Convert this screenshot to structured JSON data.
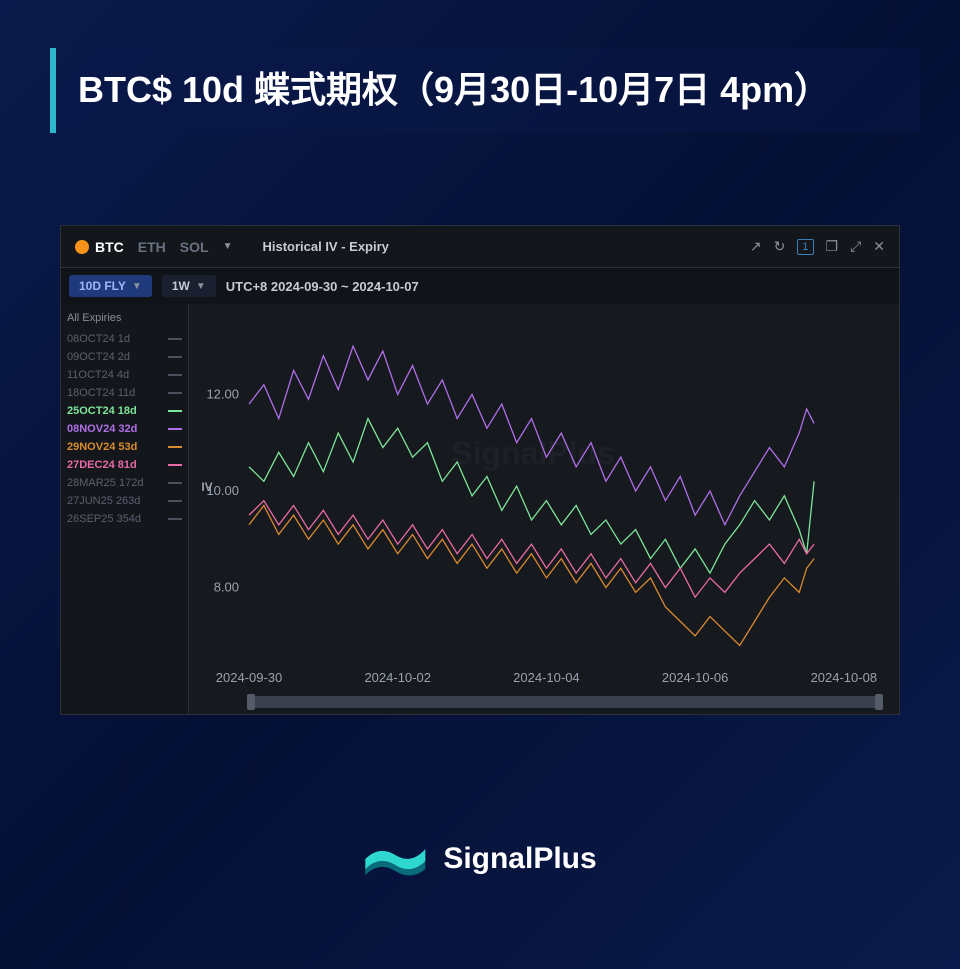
{
  "background": {
    "gradient": [
      "#0a1a4a",
      "#051035",
      "#0a1a4a"
    ],
    "line_color": "#3a5fc4",
    "line_opacity": 0.25
  },
  "title": {
    "text": "BTC$ 10d 蝶式期权（9月30日-10月7日 4pm）",
    "border_color": "#2eb8cc",
    "font_size": 36,
    "color": "#ffffff"
  },
  "panel": {
    "bg": "#16191e",
    "border": "#2a2f38",
    "coins": [
      {
        "name": "BTC",
        "active": true
      },
      {
        "name": "ETH",
        "active": false
      },
      {
        "name": "SOL",
        "active": false
      }
    ],
    "dropdown_indicator": "▼",
    "panel_title": "Historical IV - Expiry",
    "icons": {
      "popout": "↗",
      "refresh": "↻",
      "count_box": "1",
      "copy": "❐",
      "expand": "⤢",
      "close": "✕"
    },
    "filters": {
      "metric": "10D FLY",
      "range": "1W",
      "range_label": "UTC+8 2024-09-30 ~ 2024-10-07"
    }
  },
  "legend": {
    "header": "All Expiries",
    "items": [
      {
        "label": "08OCT24 1d",
        "active": false,
        "color": "#5a6070"
      },
      {
        "label": "09OCT24 2d",
        "active": false,
        "color": "#5a6070"
      },
      {
        "label": "11OCT24 4d",
        "active": false,
        "color": "#5a6070"
      },
      {
        "label": "18OCT24 11d",
        "active": false,
        "color": "#5a6070"
      },
      {
        "label": "25OCT24 18d",
        "active": true,
        "color": "#7de59a"
      },
      {
        "label": "08NOV24 32d",
        "active": true,
        "color": "#b06ee8"
      },
      {
        "label": "29NOV24 53d",
        "active": true,
        "color": "#d88a2e"
      },
      {
        "label": "27DEC24 81d",
        "active": true,
        "color": "#e86aa6"
      },
      {
        "label": "28MAR25 172d",
        "active": false,
        "color": "#5a6070"
      },
      {
        "label": "27JUN25 263d",
        "active": false,
        "color": "#5a6070"
      },
      {
        "label": "26SEP25 354d",
        "active": false,
        "color": "#5a6070"
      }
    ]
  },
  "chart": {
    "type": "line",
    "ylabel": "IV",
    "ylim": [
      6.5,
      13.5
    ],
    "yticks": [
      8.0,
      10.0,
      12.0
    ],
    "xlim": [
      0,
      8.5
    ],
    "xticks": [
      {
        "pos": 0,
        "label": "2024-09-30"
      },
      {
        "pos": 2,
        "label": "2024-10-02"
      },
      {
        "pos": 4,
        "label": "2024-10-04"
      },
      {
        "pos": 6,
        "label": "2024-10-06"
      },
      {
        "pos": 8,
        "label": "2024-10-08"
      }
    ],
    "grid_color": "#2a2f38",
    "axis_text_color": "#9aa2b0",
    "watermark": "SignalPlus",
    "series": [
      {
        "name": "25OCT24",
        "color": "#7de59a",
        "points": [
          [
            0.0,
            10.5
          ],
          [
            0.2,
            10.2
          ],
          [
            0.4,
            10.8
          ],
          [
            0.6,
            10.3
          ],
          [
            0.8,
            11.0
          ],
          [
            1.0,
            10.4
          ],
          [
            1.2,
            11.2
          ],
          [
            1.4,
            10.6
          ],
          [
            1.6,
            11.5
          ],
          [
            1.8,
            10.9
          ],
          [
            2.0,
            11.3
          ],
          [
            2.2,
            10.7
          ],
          [
            2.4,
            11.0
          ],
          [
            2.6,
            10.2
          ],
          [
            2.8,
            10.6
          ],
          [
            3.0,
            9.9
          ],
          [
            3.2,
            10.3
          ],
          [
            3.4,
            9.6
          ],
          [
            3.6,
            10.1
          ],
          [
            3.8,
            9.4
          ],
          [
            4.0,
            9.8
          ],
          [
            4.2,
            9.3
          ],
          [
            4.4,
            9.7
          ],
          [
            4.6,
            9.1
          ],
          [
            4.8,
            9.4
          ],
          [
            5.0,
            8.9
          ],
          [
            5.2,
            9.2
          ],
          [
            5.4,
            8.6
          ],
          [
            5.6,
            9.0
          ],
          [
            5.8,
            8.4
          ],
          [
            6.0,
            8.8
          ],
          [
            6.2,
            8.3
          ],
          [
            6.4,
            8.9
          ],
          [
            6.6,
            9.3
          ],
          [
            6.8,
            9.8
          ],
          [
            7.0,
            9.4
          ],
          [
            7.2,
            9.9
          ],
          [
            7.4,
            9.2
          ],
          [
            7.5,
            8.7
          ],
          [
            7.6,
            10.2
          ]
        ]
      },
      {
        "name": "08NOV24",
        "color": "#b06ee8",
        "points": [
          [
            0.0,
            11.8
          ],
          [
            0.2,
            12.2
          ],
          [
            0.4,
            11.5
          ],
          [
            0.6,
            12.5
          ],
          [
            0.8,
            11.9
          ],
          [
            1.0,
            12.8
          ],
          [
            1.2,
            12.1
          ],
          [
            1.4,
            13.0
          ],
          [
            1.6,
            12.3
          ],
          [
            1.8,
            12.9
          ],
          [
            2.0,
            12.0
          ],
          [
            2.2,
            12.6
          ],
          [
            2.4,
            11.8
          ],
          [
            2.6,
            12.3
          ],
          [
            2.8,
            11.5
          ],
          [
            3.0,
            12.0
          ],
          [
            3.2,
            11.3
          ],
          [
            3.4,
            11.8
          ],
          [
            3.6,
            11.0
          ],
          [
            3.8,
            11.5
          ],
          [
            4.0,
            10.7
          ],
          [
            4.2,
            11.2
          ],
          [
            4.4,
            10.5
          ],
          [
            4.6,
            11.0
          ],
          [
            4.8,
            10.2
          ],
          [
            5.0,
            10.7
          ],
          [
            5.2,
            10.0
          ],
          [
            5.4,
            10.5
          ],
          [
            5.6,
            9.8
          ],
          [
            5.8,
            10.3
          ],
          [
            6.0,
            9.5
          ],
          [
            6.2,
            10.0
          ],
          [
            6.4,
            9.3
          ],
          [
            6.6,
            9.9
          ],
          [
            6.8,
            10.4
          ],
          [
            7.0,
            10.9
          ],
          [
            7.2,
            10.5
          ],
          [
            7.4,
            11.2
          ],
          [
            7.5,
            11.7
          ],
          [
            7.6,
            11.4
          ]
        ]
      },
      {
        "name": "29NOV24",
        "color": "#d88a2e",
        "points": [
          [
            0.0,
            9.3
          ],
          [
            0.2,
            9.7
          ],
          [
            0.4,
            9.1
          ],
          [
            0.6,
            9.5
          ],
          [
            0.8,
            9.0
          ],
          [
            1.0,
            9.4
          ],
          [
            1.2,
            8.9
          ],
          [
            1.4,
            9.3
          ],
          [
            1.6,
            8.8
          ],
          [
            1.8,
            9.2
          ],
          [
            2.0,
            8.7
          ],
          [
            2.2,
            9.1
          ],
          [
            2.4,
            8.6
          ],
          [
            2.6,
            9.0
          ],
          [
            2.8,
            8.5
          ],
          [
            3.0,
            8.9
          ],
          [
            3.2,
            8.4
          ],
          [
            3.4,
            8.8
          ],
          [
            3.6,
            8.3
          ],
          [
            3.8,
            8.7
          ],
          [
            4.0,
            8.2
          ],
          [
            4.2,
            8.6
          ],
          [
            4.4,
            8.1
          ],
          [
            4.6,
            8.5
          ],
          [
            4.8,
            8.0
          ],
          [
            5.0,
            8.4
          ],
          [
            5.2,
            7.9
          ],
          [
            5.4,
            8.2
          ],
          [
            5.6,
            7.6
          ],
          [
            5.8,
            7.3
          ],
          [
            6.0,
            7.0
          ],
          [
            6.2,
            7.4
          ],
          [
            6.4,
            7.1
          ],
          [
            6.6,
            6.8
          ],
          [
            6.8,
            7.3
          ],
          [
            7.0,
            7.8
          ],
          [
            7.2,
            8.2
          ],
          [
            7.4,
            7.9
          ],
          [
            7.5,
            8.4
          ],
          [
            7.6,
            8.6
          ]
        ]
      },
      {
        "name": "27DEC24",
        "color": "#e86aa6",
        "points": [
          [
            0.0,
            9.5
          ],
          [
            0.2,
            9.8
          ],
          [
            0.4,
            9.3
          ],
          [
            0.6,
            9.7
          ],
          [
            0.8,
            9.2
          ],
          [
            1.0,
            9.6
          ],
          [
            1.2,
            9.1
          ],
          [
            1.4,
            9.5
          ],
          [
            1.6,
            9.0
          ],
          [
            1.8,
            9.4
          ],
          [
            2.0,
            8.9
          ],
          [
            2.2,
            9.3
          ],
          [
            2.4,
            8.8
          ],
          [
            2.6,
            9.2
          ],
          [
            2.8,
            8.7
          ],
          [
            3.0,
            9.1
          ],
          [
            3.2,
            8.6
          ],
          [
            3.4,
            9.0
          ],
          [
            3.6,
            8.5
          ],
          [
            3.8,
            8.9
          ],
          [
            4.0,
            8.4
          ],
          [
            4.2,
            8.8
          ],
          [
            4.4,
            8.3
          ],
          [
            4.6,
            8.7
          ],
          [
            4.8,
            8.2
          ],
          [
            5.0,
            8.6
          ],
          [
            5.2,
            8.1
          ],
          [
            5.4,
            8.5
          ],
          [
            5.6,
            8.0
          ],
          [
            5.8,
            8.4
          ],
          [
            6.0,
            7.8
          ],
          [
            6.2,
            8.2
          ],
          [
            6.4,
            7.9
          ],
          [
            6.6,
            8.3
          ],
          [
            6.8,
            8.6
          ],
          [
            7.0,
            8.9
          ],
          [
            7.2,
            8.5
          ],
          [
            7.4,
            9.0
          ],
          [
            7.5,
            8.7
          ],
          [
            7.6,
            8.9
          ]
        ]
      }
    ],
    "scrollbar": {
      "thumb_left_pct": 0,
      "thumb_width_pct": 100
    }
  },
  "brand": {
    "name": "SignalPlus",
    "logo_colors": [
      "#0a6b7a",
      "#2ed8d0"
    ]
  }
}
